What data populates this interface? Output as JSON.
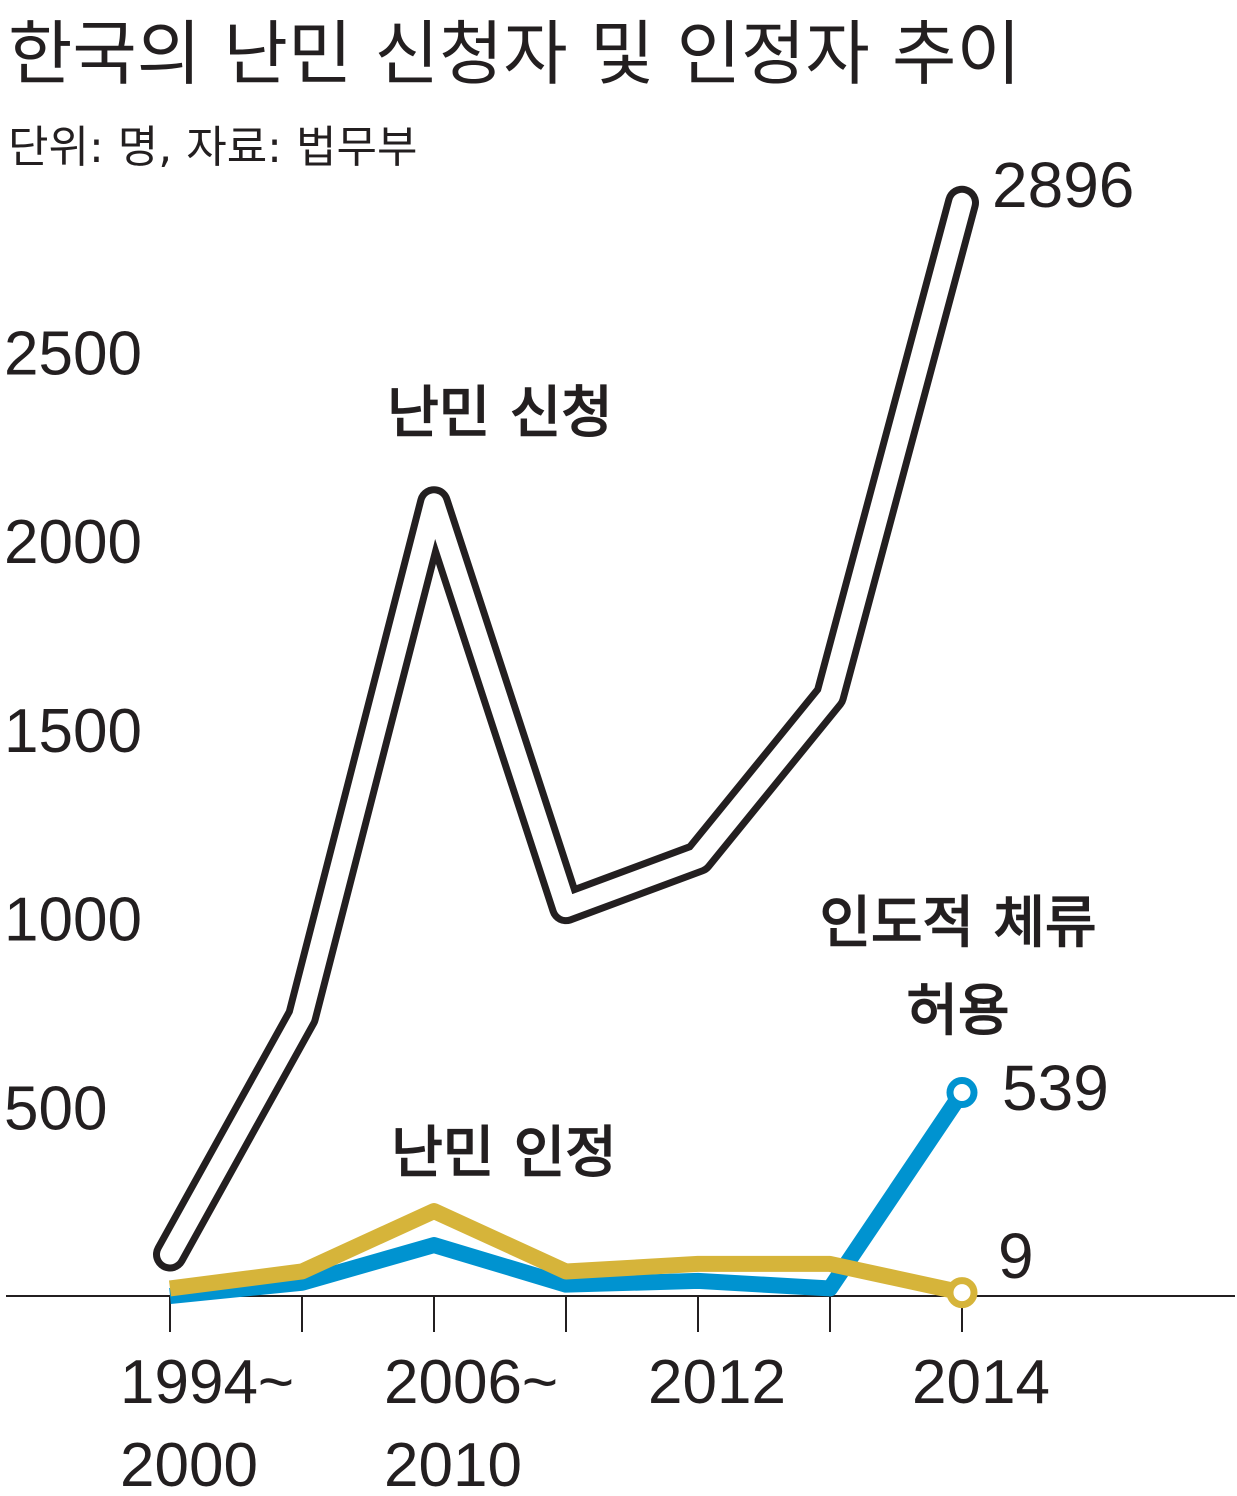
{
  "title": "한국의 난민 신청자 및 인정자 추이",
  "subtitle": "단위: 명, 자료: 법무부",
  "colors": {
    "applicants": "#ffffff",
    "applicants_outline": "#231f20",
    "humanitarian": "#0093d0",
    "recognized": "#d6b43a",
    "axis": "#231f20",
    "text": "#231f20"
  },
  "chart_data": {
    "type": "line",
    "ylim": [
      0,
      3000
    ],
    "yticks": [
      "500",
      "1000",
      "1500",
      "2000",
      "2500"
    ],
    "ytick_values": [
      500,
      1000,
      1500,
      2000,
      2500
    ],
    "x_tick_count": 7,
    "x_labels": [
      {
        "tick": 0,
        "lines": [
          "1994~",
          "2000"
        ]
      },
      {
        "tick": 2,
        "lines": [
          "2006~",
          "2010"
        ]
      },
      {
        "tick": 4,
        "lines": [
          "2012"
        ]
      },
      {
        "tick": 6,
        "lines": [
          "2014"
        ]
      }
    ],
    "series": [
      {
        "key": "applicants",
        "name": "난민 신청",
        "label_lines": [
          "난민 신청"
        ],
        "values": [
          110,
          740,
          2100,
          1030,
          1160,
          1590,
          2896
        ],
        "end_label": "2896"
      },
      {
        "key": "humanitarian",
        "name": "인도적 체류 허용",
        "label_lines": [
          "인도적 체류",
          "허용"
        ],
        "values": [
          0,
          35,
          135,
          30,
          40,
          20,
          539
        ],
        "end_label": "539"
      },
      {
        "key": "recognized",
        "name": "난민 인정",
        "label_lines": [
          "난민 인정"
        ],
        "values": [
          20,
          65,
          225,
          65,
          85,
          85,
          9
        ],
        "end_label": "9"
      }
    ]
  }
}
